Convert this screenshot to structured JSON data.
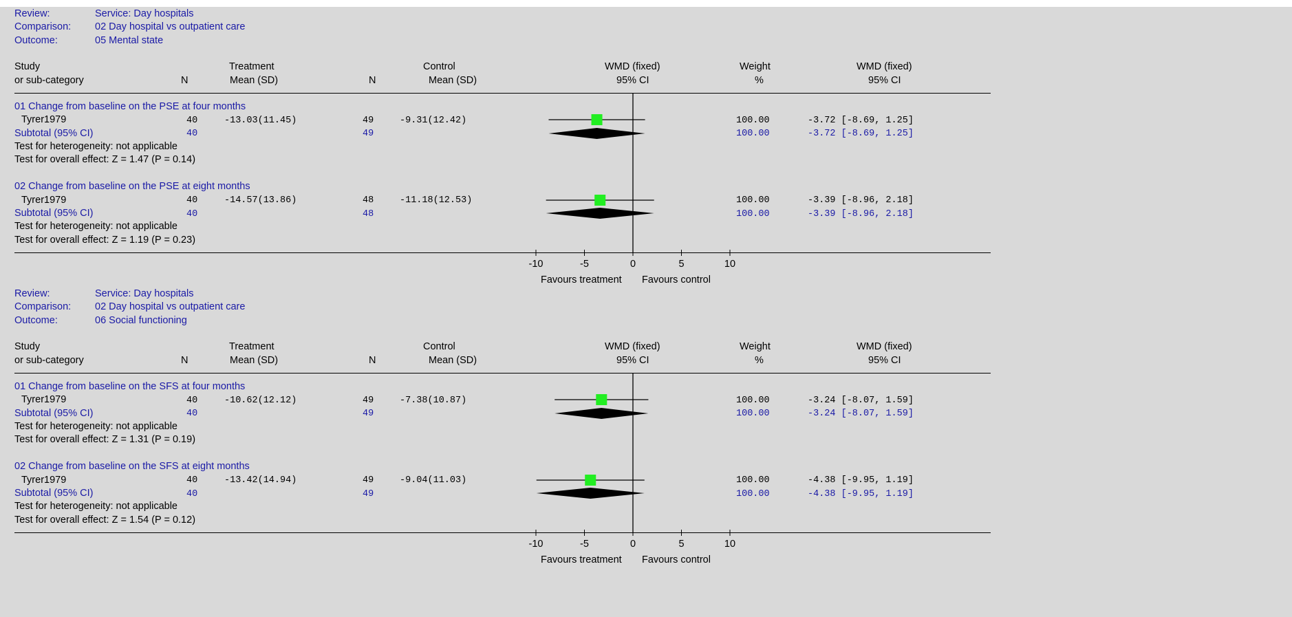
{
  "colors": {
    "header_text": "#1a1aa6",
    "square": "#22ee22",
    "diamond": "#000000",
    "background": "#d9d9d9"
  },
  "column_headers": {
    "study": "Study",
    "study_sub": "or sub-category",
    "n": "N",
    "treatment": "Treatment",
    "treatment_sub": "Mean (SD)",
    "control": "Control",
    "control_sub": "Mean (SD)",
    "plot": "WMD (fixed)",
    "plot_sub": "95% CI",
    "weight": "Weight",
    "weight_sub": "%",
    "wmd": "WMD (fixed)",
    "wmd_sub": "95% CI"
  },
  "labels": {
    "review": "Review:",
    "comparison": "Comparison:",
    "outcome": "Outcome:"
  },
  "footer": {
    "favours_treatment": "Favours treatment",
    "favours_control": "Favours control"
  },
  "chart_data": [
    {
      "type": "forest",
      "review": "Service: Day hospitals",
      "comparison": "02 Day hospital vs outpatient care",
      "outcome": "05 Mental state",
      "xlim": [
        -10,
        10
      ],
      "xticks": [
        "-10",
        "-5",
        "0",
        "5",
        "10"
      ],
      "groups": [
        {
          "title": "01 Change from baseline on the PSE at four months",
          "study": {
            "name": "Tyrer1979",
            "n_t": "40",
            "mean_sd_t": "-13.03(11.45)",
            "n_c": "49",
            "mean_sd_c": "-9.31(12.42)",
            "weight": "100.00",
            "ci_text": "-3.72 [-8.69, 1.25]",
            "est": -3.72,
            "lo": -8.69,
            "hi": 1.25
          },
          "subtotal": {
            "label": "Subtotal (95% CI)",
            "n_t": "40",
            "n_c": "49",
            "weight": "100.00",
            "ci_text": "-3.72 [-8.69, 1.25]",
            "est": -3.72,
            "lo": -8.69,
            "hi": 1.25
          },
          "heterogeneity": "Test for heterogeneity: not applicable",
          "overall": "Test for overall effect: Z = 1.47 (P = 0.14)"
        },
        {
          "title": "02 Change from baseline on the PSE at eight months",
          "study": {
            "name": "Tyrer1979",
            "n_t": "40",
            "mean_sd_t": "-14.57(13.86)",
            "n_c": "48",
            "mean_sd_c": "-11.18(12.53)",
            "weight": "100.00",
            "ci_text": "-3.39 [-8.96, 2.18]",
            "est": -3.39,
            "lo": -8.96,
            "hi": 2.18
          },
          "subtotal": {
            "label": "Subtotal (95% CI)",
            "n_t": "40",
            "n_c": "48",
            "weight": "100.00",
            "ci_text": "-3.39 [-8.96, 2.18]",
            "est": -3.39,
            "lo": -8.96,
            "hi": 2.18
          },
          "heterogeneity": "Test for heterogeneity: not applicable",
          "overall": "Test for overall effect: Z = 1.19 (P = 0.23)"
        }
      ]
    },
    {
      "type": "forest",
      "review": "Service: Day hospitals",
      "comparison": "02 Day hospital vs outpatient care",
      "outcome": "06 Social functioning",
      "xlim": [
        -10,
        10
      ],
      "xticks": [
        "-10",
        "-5",
        "0",
        "5",
        "10"
      ],
      "groups": [
        {
          "title": "01 Change from baseline on the SFS at four months",
          "study": {
            "name": "Tyrer1979",
            "n_t": "40",
            "mean_sd_t": "-10.62(12.12)",
            "n_c": "49",
            "mean_sd_c": "-7.38(10.87)",
            "weight": "100.00",
            "ci_text": "-3.24 [-8.07, 1.59]",
            "est": -3.24,
            "lo": -8.07,
            "hi": 1.59
          },
          "subtotal": {
            "label": "Subtotal (95% CI)",
            "n_t": "40",
            "n_c": "49",
            "weight": "100.00",
            "ci_text": "-3.24 [-8.07, 1.59]",
            "est": -3.24,
            "lo": -8.07,
            "hi": 1.59
          },
          "heterogeneity": "Test for heterogeneity: not applicable",
          "overall": "Test for overall effect: Z = 1.31 (P = 0.19)"
        },
        {
          "title": "02 Change from baseline on the SFS at eight months",
          "study": {
            "name": "Tyrer1979",
            "n_t": "40",
            "mean_sd_t": "-13.42(14.94)",
            "n_c": "49",
            "mean_sd_c": "-9.04(11.03)",
            "weight": "100.00",
            "ci_text": "-4.38 [-9.95, 1.19]",
            "est": -4.38,
            "lo": -9.95,
            "hi": 1.19
          },
          "subtotal": {
            "label": "Subtotal (95% CI)",
            "n_t": "40",
            "n_c": "49",
            "weight": "100.00",
            "ci_text": "-4.38 [-9.95, 1.19]",
            "est": -4.38,
            "lo": -9.95,
            "hi": 1.19
          },
          "heterogeneity": "Test for heterogeneity: not applicable",
          "overall": "Test for overall effect: Z = 1.54 (P = 0.12)"
        }
      ]
    }
  ]
}
